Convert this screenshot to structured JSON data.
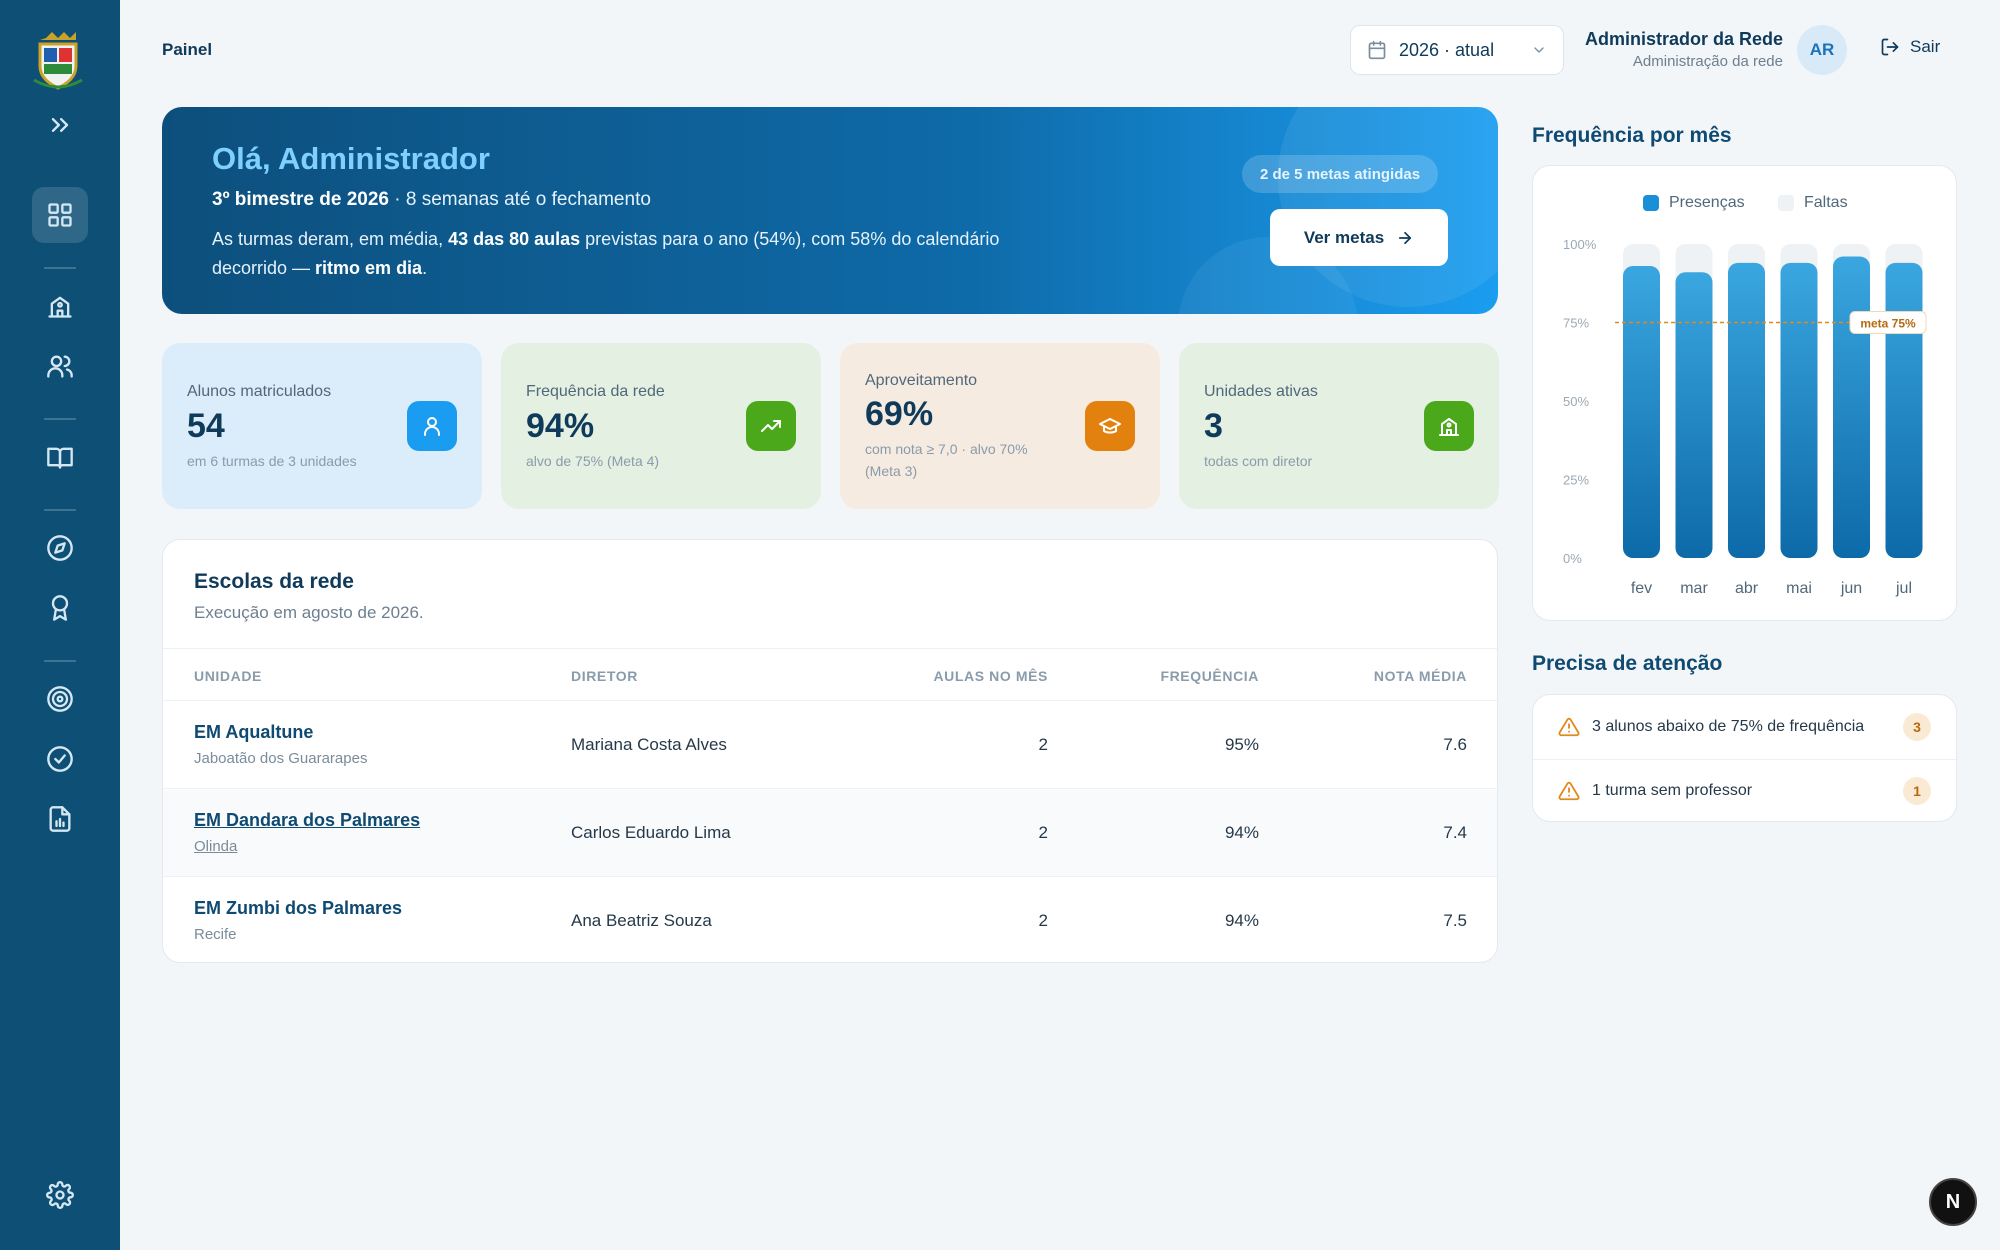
{
  "breadcrumb": "Painel",
  "year_select": {
    "value": "2026 · atual"
  },
  "user": {
    "name": "Administrador da Rede",
    "role": "Administração da rede",
    "initials": "AR"
  },
  "logout_label": "Sair",
  "hero": {
    "greeting": "Olá, Administrador",
    "period_bold": "3º bimestre de 2026",
    "period_rest": " · 8 semanas até o fechamento",
    "desc_1": "As turmas deram, em média, ",
    "desc_bold_1": "43 das 80 aulas",
    "desc_2": " previstas para o ano (54%), com 58% do calendário decorrido — ",
    "desc_bold_2": "ritmo em dia",
    "desc_3": ".",
    "goals_pill": "2 de 5 metas atingidas",
    "goals_button": "Ver metas"
  },
  "stats": [
    {
      "label": "Alunos matriculados",
      "value": "54",
      "hint": "em 6 turmas de 3 unidades",
      "icon": "user-icon",
      "bg": "#dbedfa",
      "icon_bg": "#1a9cf0"
    },
    {
      "label": "Frequência da rede",
      "value": "94%",
      "hint": "alvo de 75% (Meta 4)",
      "icon": "trending-up-icon",
      "bg": "#e4f0e2",
      "icon_bg": "#4aa81a"
    },
    {
      "label": "Aproveitamento",
      "value": "69%",
      "hint": "com nota ≥ 7,0 · alvo 70% (Meta 3)",
      "icon": "graduation-cap-icon",
      "bg": "#f5ebe0",
      "icon_bg": "#e3810f"
    },
    {
      "label": "Unidades ativas",
      "value": "3",
      "hint": "todas com diretor",
      "icon": "school-icon",
      "bg": "#e4f0e2",
      "icon_bg": "#4aa81a"
    }
  ],
  "schools": {
    "title": "Escolas da rede",
    "subtitle": "Execução em agosto de 2026.",
    "columns": [
      "UNIDADE",
      "DIRETOR",
      "AULAS NO MÊS",
      "FREQUÊNCIA",
      "NOTA MÉDIA"
    ],
    "rows": [
      {
        "unit": "EM Aqualtune",
        "city": "Jaboatão dos Guararapes",
        "director": "Mariana Costa Alves",
        "classes": "2",
        "attendance": "95%",
        "grade": "7.6"
      },
      {
        "unit": "EM Dandara dos Palmares",
        "city": "Olinda",
        "director": "Carlos Eduardo Lima",
        "classes": "2",
        "attendance": "94%",
        "grade": "7.4"
      },
      {
        "unit": "EM Zumbi dos Palmares",
        "city": "Recife",
        "director": "Ana Beatriz Souza",
        "classes": "2",
        "attendance": "94%",
        "grade": "7.5"
      }
    ]
  },
  "chart_title": "Frequência por mês",
  "chart_data": {
    "type": "bar",
    "stacked": true,
    "categories": [
      "fev",
      "mar",
      "abr",
      "mai",
      "jun",
      "jul"
    ],
    "series": [
      {
        "name": "Presenças",
        "values": [
          93,
          91,
          94,
          94,
          96,
          94
        ]
      },
      {
        "name": "Faltas",
        "values": [
          7,
          9,
          6,
          6,
          4,
          6
        ]
      }
    ],
    "ylim": [
      0,
      100
    ],
    "yticks": [
      "0%",
      "25%",
      "50%",
      "75%",
      "100%"
    ],
    "target": {
      "value": 75,
      "label": "meta 75%"
    },
    "legend": "top",
    "colors": {
      "presencas": "#1a8fd8",
      "faltas": "#eef2f5",
      "target": "#e08a1e"
    }
  },
  "attention": {
    "title": "Precisa de atenção",
    "items": [
      {
        "text": "3 alunos abaixo de 75% de frequência",
        "count": "3"
      },
      {
        "text": "1 turma sem professor",
        "count": "1"
      }
    ]
  },
  "fab_label": "N"
}
